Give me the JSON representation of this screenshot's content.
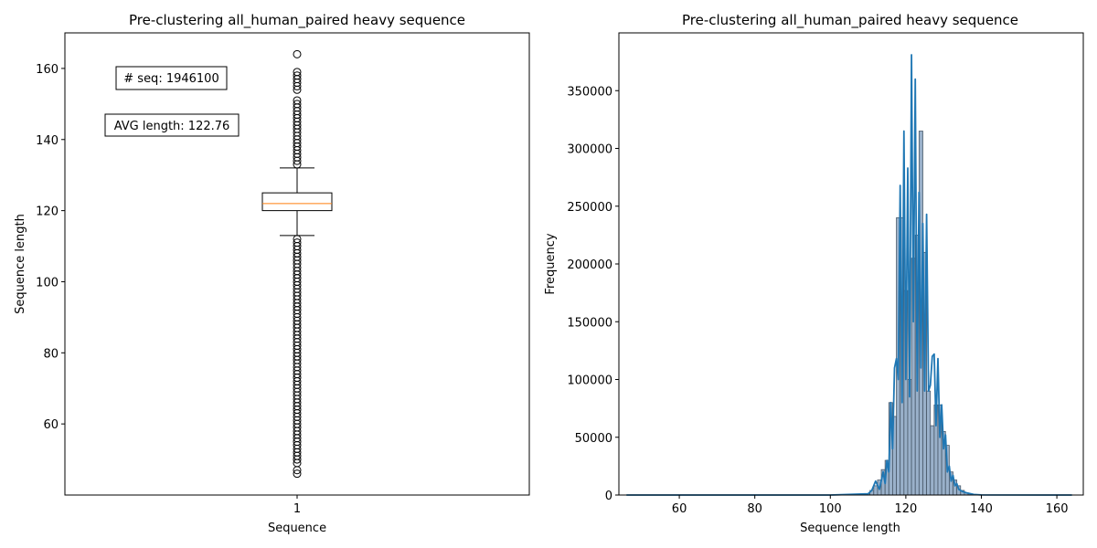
{
  "chart_data": [
    {
      "type": "box",
      "title": "Pre-clustering all_human_paired heavy sequence",
      "xlabel": "Sequence",
      "ylabel": "Sequence length",
      "categories": [
        "1"
      ],
      "ylim": [
        40,
        170
      ],
      "yticks": [
        60,
        80,
        100,
        120,
        140,
        160
      ],
      "box": {
        "q1": 120,
        "median": 122,
        "q3": 125,
        "whisker_low": 113,
        "whisker_high": 132,
        "outliers": [
          46,
          47,
          49,
          50,
          51,
          52,
          53,
          54,
          55,
          56,
          57,
          58,
          59,
          60,
          61,
          62,
          63,
          64,
          65,
          66,
          67,
          68,
          69,
          70,
          71,
          72,
          73,
          74,
          75,
          76,
          77,
          78,
          79,
          80,
          81,
          82,
          83,
          84,
          85,
          86,
          87,
          88,
          89,
          90,
          91,
          92,
          93,
          94,
          95,
          96,
          97,
          98,
          99,
          100,
          101,
          102,
          103,
          104,
          105,
          106,
          107,
          108,
          109,
          110,
          111,
          112,
          133,
          134,
          135,
          136,
          137,
          138,
          139,
          140,
          141,
          142,
          143,
          144,
          145,
          146,
          147,
          148,
          149,
          150,
          151,
          154,
          155,
          156,
          157,
          158,
          159,
          164
        ],
        "color": "#000000",
        "median_color": "#ff7f0e"
      },
      "annotations": [
        "# seq: 1946100",
        "AVG length: 122.76"
      ]
    },
    {
      "type": "histogram",
      "title": "Pre-clustering all_human_paired heavy sequence",
      "xlabel": "Sequence length",
      "ylabel": "Frequency",
      "xlim": [
        44,
        167
      ],
      "ylim": [
        0,
        400000
      ],
      "xticks": [
        60,
        80,
        100,
        120,
        140,
        160
      ],
      "yticks": [
        0,
        50000,
        100000,
        150000,
        200000,
        250000,
        300000,
        350000
      ],
      "bar_color": "#8fa9c4",
      "line_color": "#1f77b4",
      "x": [
        46,
        110,
        111,
        112,
        113,
        114,
        115,
        116,
        117,
        118,
        119,
        120,
        121,
        122,
        123,
        124,
        125,
        126,
        127,
        128,
        129,
        130,
        131,
        132,
        133,
        134,
        135,
        136,
        137,
        138,
        140,
        164
      ],
      "values": [
        0,
        1000,
        4000,
        8000,
        13000,
        22000,
        30000,
        80000,
        68000,
        240000,
        240000,
        177000,
        100000,
        205000,
        225000,
        315000,
        210000,
        90000,
        60000,
        78000,
        78000,
        55000,
        43000,
        20000,
        13000,
        8000,
        4000,
        2000,
        1000,
        500,
        100,
        0
      ],
      "kde": [
        [
          46,
          0
        ],
        [
          100,
          0
        ],
        [
          110,
          1000
        ],
        [
          111,
          4000
        ],
        [
          112,
          12000
        ],
        [
          113,
          5000
        ],
        [
          114,
          20000
        ],
        [
          114.5,
          10000
        ],
        [
          115,
          30000
        ],
        [
          115.5,
          20000
        ],
        [
          116,
          80000
        ],
        [
          116.5,
          40000
        ],
        [
          117,
          110000
        ],
        [
          117.5,
          118000
        ],
        [
          118,
          100000
        ],
        [
          118.5,
          268000
        ],
        [
          119,
          80000
        ],
        [
          119.5,
          315000
        ],
        [
          120,
          100000
        ],
        [
          120.5,
          283000
        ],
        [
          121,
          85000
        ],
        [
          121.5,
          381000
        ],
        [
          122,
          150000
        ],
        [
          122.5,
          360000
        ],
        [
          123,
          90000
        ],
        [
          123.5,
          262000
        ],
        [
          124,
          110000
        ],
        [
          124.5,
          235000
        ],
        [
          125,
          90000
        ],
        [
          125.5,
          243000
        ],
        [
          126,
          90000
        ],
        [
          126.5,
          95000
        ],
        [
          127,
          120000
        ],
        [
          127.5,
          122000
        ],
        [
          128,
          60000
        ],
        [
          128.5,
          118000
        ],
        [
          129,
          50000
        ],
        [
          129.5,
          78000
        ],
        [
          130,
          40000
        ],
        [
          130.5,
          52000
        ],
        [
          131,
          20000
        ],
        [
          131.5,
          25000
        ],
        [
          132,
          12000
        ],
        [
          132.5,
          17000
        ],
        [
          133,
          8000
        ],
        [
          133.5,
          10000
        ],
        [
          134,
          5000
        ],
        [
          135,
          3000
        ],
        [
          136,
          2000
        ],
        [
          138,
          500
        ],
        [
          140,
          100
        ],
        [
          164,
          0
        ]
      ]
    }
  ]
}
